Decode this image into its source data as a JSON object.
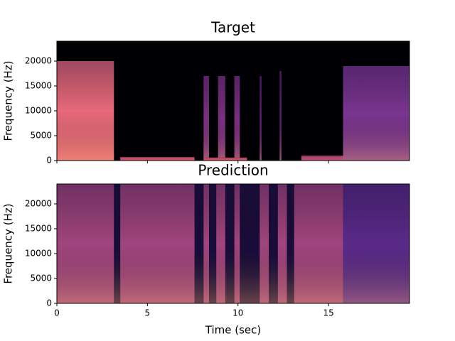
{
  "chart_data": [
    {
      "type": "spectrogram",
      "title": "Target",
      "ylabel": "Frequency (Hz)",
      "xlim": [
        0,
        19.47
      ],
      "xticks": [
        0,
        5,
        10,
        15
      ],
      "show_xticklabels": false,
      "ylim": [
        0,
        24000
      ],
      "yticks": [
        0,
        5000,
        10000,
        15000,
        20000
      ],
      "background": "#000004",
      "regions": [
        {
          "x0": 0,
          "x1": 3.15,
          "y1": 20000,
          "color": "#e8697a"
        },
        {
          "x0": 3.5,
          "x1": 7.6,
          "y1": 700,
          "color": "#d8506e"
        },
        {
          "x0": 8.1,
          "x1": 8.4,
          "y1": 17000,
          "color": "#7a3080"
        },
        {
          "x0": 8.9,
          "x1": 9.3,
          "y1": 17000,
          "color": "#7a3080"
        },
        {
          "x0": 9.8,
          "x1": 10.1,
          "y1": 17000,
          "color": "#7a3080"
        },
        {
          "x0": 8.1,
          "x1": 10.5,
          "y1": 600,
          "color": "#d8506e"
        },
        {
          "x0": 11.2,
          "x1": 11.3,
          "y1": 17000,
          "color": "#5a2070"
        },
        {
          "x0": 12.3,
          "x1": 12.4,
          "y1": 18000,
          "color": "#5a2070"
        },
        {
          "x0": 13.5,
          "x1": 15.8,
          "y1": 1000,
          "color": "#c04a78"
        },
        {
          "x0": 15.8,
          "x1": 19.47,
          "y1": 19000,
          "color": "#7a3590"
        }
      ]
    },
    {
      "type": "spectrogram",
      "title": "Prediction",
      "ylabel": "Frequency (Hz)",
      "xlabel": "Time (sec)",
      "xlim": [
        0,
        19.47
      ],
      "xticks": [
        0,
        5,
        10,
        15
      ],
      "show_xticklabels": true,
      "ylim": [
        0,
        24000
      ],
      "yticks": [
        0,
        5000,
        10000,
        15000,
        20000
      ],
      "background": "#000004",
      "regions": [
        {
          "x0": 0,
          "x1": 19.47,
          "y1": 24000,
          "color": "#a0457e"
        },
        {
          "x0": 3.15,
          "x1": 3.5,
          "y1": 24000,
          "color": "#1a0c3a"
        },
        {
          "x0": 7.6,
          "x1": 8.1,
          "y1": 24000,
          "color": "#1a0c3a"
        },
        {
          "x0": 8.4,
          "x1": 8.8,
          "y1": 24000,
          "color": "#1a0c3a"
        },
        {
          "x0": 9.3,
          "x1": 9.8,
          "y1": 24000,
          "color": "#1a0c3a"
        },
        {
          "x0": 10.1,
          "x1": 11.2,
          "y1": 24000,
          "color": "#1a0c3a"
        },
        {
          "x0": 11.7,
          "x1": 12.2,
          "y1": 24000,
          "color": "#1a0c3a"
        },
        {
          "x0": 12.7,
          "x1": 13.1,
          "y1": 24000,
          "color": "#1a0c3a"
        },
        {
          "x0": 15.8,
          "x1": 19.47,
          "y1": 24000,
          "color": "#5a2a8a"
        }
      ]
    }
  ]
}
